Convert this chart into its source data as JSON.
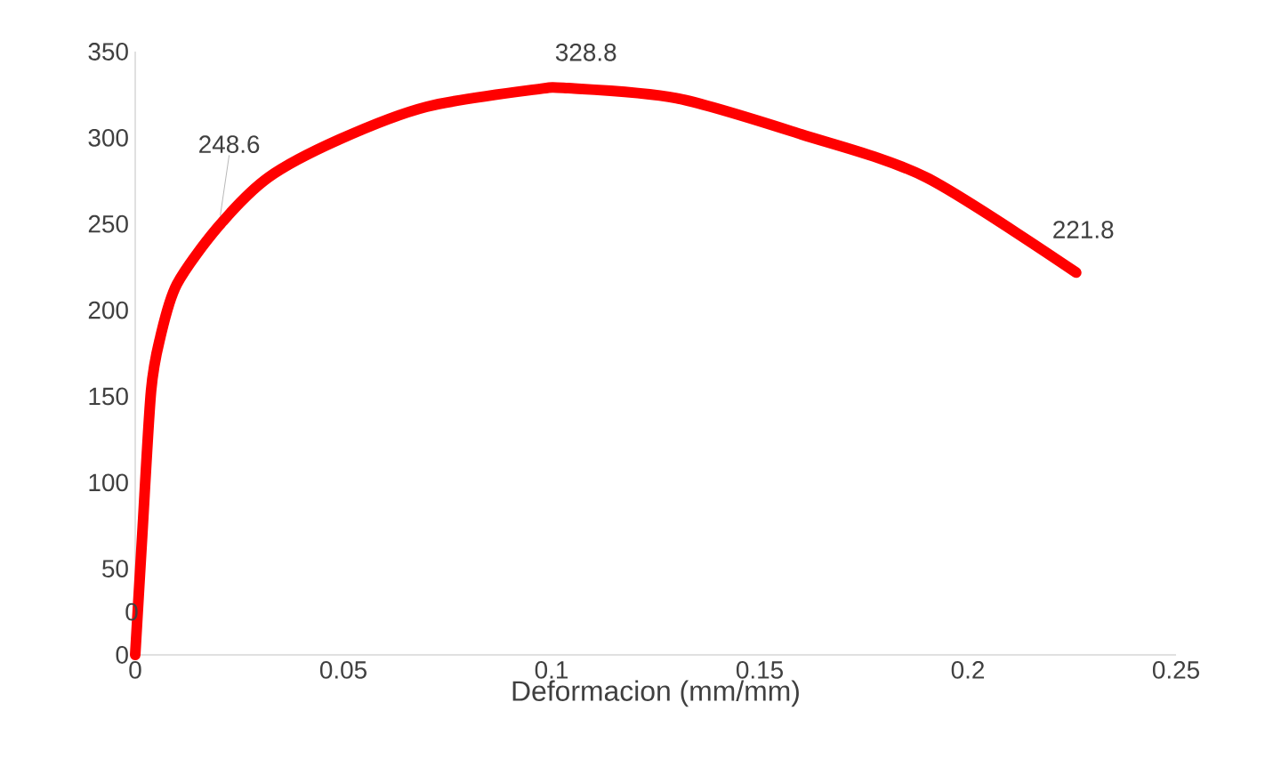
{
  "chart_data": {
    "type": "line",
    "xlabel": "Deformacion (mm/mm)",
    "x": [
      0,
      0.0017,
      0.0038,
      0.006,
      0.01,
      0.02,
      0.032,
      0.049,
      0.07,
      0.096,
      0.104,
      0.13,
      0.16,
      0.19,
      0.226
    ],
    "series": [
      {
        "color": "#ff0000",
        "values": [
          0,
          70,
          153,
          184,
          215,
          248.6,
          277,
          299,
          318,
          328,
          328.8,
          323,
          302,
          277,
          221.8
        ]
      }
    ],
    "xlim": [
      0,
      0.25
    ],
    "ylim": [
      0,
      350
    ],
    "xticks": [
      0,
      0.05,
      0.1,
      0.15,
      0.2,
      0.25
    ],
    "yticks": [
      0,
      50,
      100,
      150,
      200,
      250,
      300,
      350
    ],
    "grid": false,
    "marker": "none",
    "line_style": "solid",
    "annotations": [
      {
        "text": "0",
        "x": 0,
        "y": 0
      },
      {
        "text": "248.6",
        "x": 0.02,
        "y": 248.6
      },
      {
        "text": "328.8",
        "x": 0.104,
        "y": 328.8
      },
      {
        "text": "221.8",
        "x": 0.226,
        "y": 221.8
      }
    ]
  }
}
